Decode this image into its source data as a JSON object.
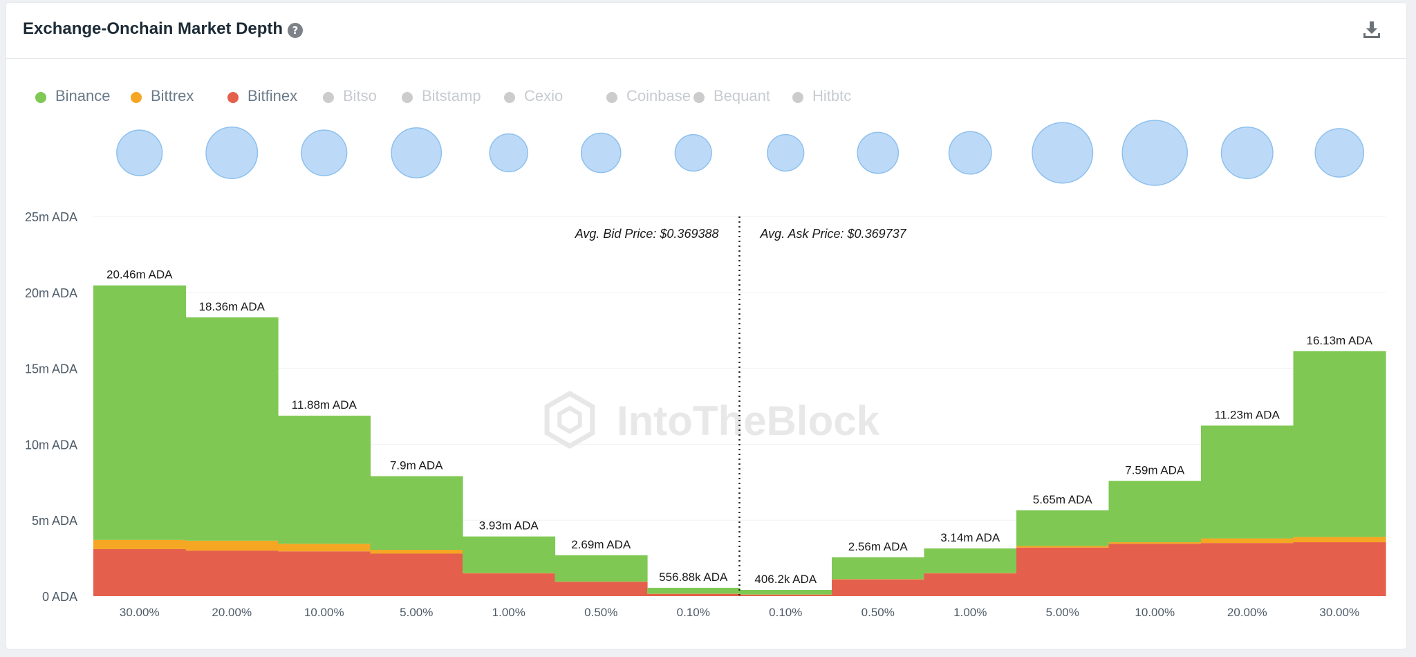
{
  "header": {
    "title": "Exchange-Onchain Market Depth",
    "help_glyph": "?"
  },
  "icons": {
    "help": "question-circle-icon",
    "download": "download-icon"
  },
  "watermark": "IntoTheBlock",
  "legend": [
    {
      "name": "Binance",
      "color": "#7ec853",
      "active": true
    },
    {
      "name": "Bittrex",
      "color": "#f5a623",
      "active": true
    },
    {
      "name": "Bitfinex",
      "color": "#e5604c",
      "active": true
    },
    {
      "name": "Bitso",
      "color": "#cccccc",
      "active": false
    },
    {
      "name": "Bitstamp",
      "color": "#cccccc",
      "active": false
    },
    {
      "name": "Cexio",
      "color": "#cccccc",
      "active": false
    },
    {
      "name": "Coinbase",
      "color": "#cccccc",
      "active": false
    },
    {
      "name": "Bequant",
      "color": "#cccccc",
      "active": false
    },
    {
      "name": "Hitbtc",
      "color": "#cccccc",
      "active": false
    }
  ],
  "chart_data": {
    "type": "bar",
    "stacked": true,
    "categories": [
      "30.00%",
      "20.00%",
      "10.00%",
      "5.00%",
      "1.00%",
      "0.50%",
      "0.10%",
      "0.10%",
      "0.50%",
      "1.00%",
      "5.00%",
      "10.00%",
      "20.00%",
      "30.00%"
    ],
    "sides": [
      "bid",
      "bid",
      "bid",
      "bid",
      "bid",
      "bid",
      "bid",
      "ask",
      "ask",
      "ask",
      "ask",
      "ask",
      "ask",
      "ask"
    ],
    "ylim": [
      0,
      25
    ],
    "y_unit": "m ADA",
    "y_ticks": [
      0,
      5,
      10,
      15,
      20,
      25
    ],
    "y_tick_labels": [
      "0 ADA",
      "5m ADA",
      "10m ADA",
      "15m ADA",
      "20m ADA",
      "25m ADA"
    ],
    "grid": true,
    "series": [
      {
        "name": "Bitfinex",
        "color": "#e5604c",
        "values": [
          3.1,
          3.0,
          2.95,
          2.8,
          1.5,
          0.95,
          0.15,
          0.1,
          1.1,
          1.5,
          3.2,
          3.45,
          3.5,
          3.55
        ]
      },
      {
        "name": "Bittrex",
        "color": "#f5a623",
        "values": [
          0.6,
          0.65,
          0.5,
          0.25,
          0.02,
          0.01,
          0.01,
          0.01,
          0.02,
          0.02,
          0.1,
          0.1,
          0.3,
          0.35
        ]
      },
      {
        "name": "Binance",
        "color": "#7ec853",
        "values": [
          16.76,
          14.71,
          8.43,
          4.85,
          2.41,
          1.73,
          0.39,
          0.3,
          1.44,
          1.62,
          2.35,
          4.04,
          7.43,
          12.23
        ]
      }
    ],
    "totals": [
      20.46,
      18.36,
      11.88,
      7.9,
      3.93,
      2.69,
      0.55688,
      0.4062,
      2.56,
      3.14,
      5.65,
      7.59,
      11.23,
      16.13
    ],
    "total_labels": [
      "20.46m ADA",
      "18.36m ADA",
      "11.88m ADA",
      "7.9m ADA",
      "3.93m ADA",
      "2.69m ADA",
      "556.88k ADA",
      "406.2k ADA",
      "2.56m ADA",
      "3.14m ADA",
      "5.65m ADA",
      "7.59m ADA",
      "11.23m ADA",
      "16.13m ADA"
    ],
    "bubbles": [
      5.0,
      7.0,
      5.0,
      6.5,
      2.5,
      3.0,
      2.0,
      2.0,
      3.5,
      4.0,
      10.0,
      11.5,
      7.0,
      6.0
    ],
    "bubble_color": "#bcdaf7",
    "bubble_stroke": "#8ec0ee",
    "annotations": {
      "bid": "Avg. Bid Price: $0.369388",
      "ask": "Avg. Ask Price: $0.369737"
    }
  }
}
